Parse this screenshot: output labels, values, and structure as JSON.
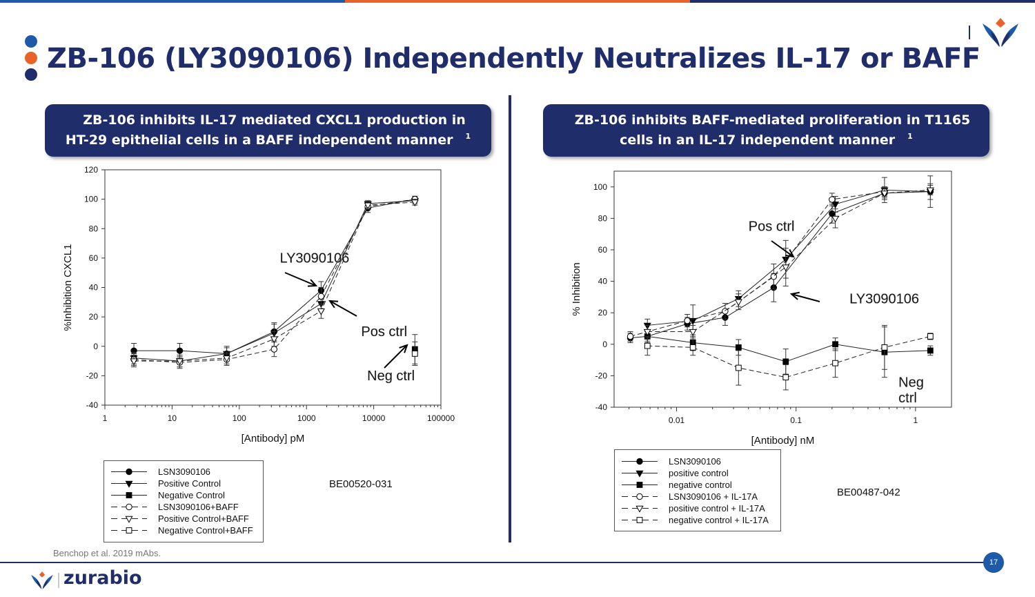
{
  "slide": {
    "title": "ZB-106 (LY3090106) Independently Neutralizes IL-17 or BAFF",
    "left_header": "ZB-106 inhibits IL-17 mediated CXCL1 production in HT-29 epithelial cells in a BAFF independent manner",
    "right_header": "ZB-106 inhibits BAFF-mediated proliferation in T1165 cells in an IL-17 independent manner",
    "footnote_mark": "1",
    "citation": "Benchop et al. 2019 mAbs.",
    "page_number": "17",
    "brand": "zurabio",
    "colors": {
      "navy": "#1f2d6b",
      "orange": "#e8622a",
      "blue": "#1f5aa8"
    }
  },
  "chart_data": [
    {
      "type": "line",
      "xscale": "log",
      "xlabel": "[Antibody] pM",
      "ylabel": "%Inhibition CXCL1",
      "xlim": [
        1,
        100000
      ],
      "ylim": [
        -40,
        120
      ],
      "xticks": [
        1,
        10,
        100,
        1000,
        10000,
        100000
      ],
      "xtick_labels": [
        "1",
        "10",
        "100",
        "1000",
        "10000",
        "100000"
      ],
      "yticks": [
        -40,
        -20,
        0,
        20,
        40,
        60,
        80,
        100,
        120
      ],
      "annotations": [
        {
          "text": "LY3090106",
          "x": 400,
          "y": 57
        },
        {
          "text": "Pos ctrl",
          "x": 6500,
          "y": 7
        },
        {
          "text": "Neg ctrl",
          "x": 8000,
          "y": -23
        }
      ],
      "code": "BE00520-031",
      "series": [
        {
          "name": "LSN3090106",
          "marker": "circle-filled",
          "dash": false,
          "x": [
            2.7,
            13,
            65,
            330,
            1650,
            8200,
            41000
          ],
          "y": [
            -3,
            -3,
            -5,
            10,
            38,
            94,
            100
          ],
          "err": [
            5,
            5,
            5,
            6,
            6,
            3,
            2
          ]
        },
        {
          "name": "Positive Control",
          "marker": "triangle-filled",
          "dash": false,
          "x": [
            2.7,
            13,
            65,
            330,
            1650,
            8200,
            41000
          ],
          "y": [
            -8,
            -10,
            -5,
            9,
            29,
            97,
            99
          ],
          "err": [
            4,
            4,
            4,
            6,
            5,
            2,
            2
          ]
        },
        {
          "name": "Negative Control",
          "marker": "square-filled",
          "dash": false,
          "x": [
            41000
          ],
          "y": [
            -2
          ],
          "err": [
            10
          ]
        },
        {
          "name": "LSN3090106+BAFF",
          "marker": "circle-open",
          "dash": true,
          "x": [
            2.7,
            13,
            65,
            330,
            1650,
            8200,
            41000
          ],
          "y": [
            -9,
            -11,
            -9,
            -2,
            34,
            95,
            100
          ],
          "err": [
            4,
            4,
            4,
            5,
            6,
            2,
            2
          ]
        },
        {
          "name": "Positive Control+BAFF",
          "marker": "triangle-open",
          "dash": true,
          "x": [
            2.7,
            13,
            65,
            330,
            1650,
            8200,
            41000
          ],
          "y": [
            -10,
            -10,
            -8,
            5,
            24,
            96,
            98
          ],
          "err": [
            4,
            4,
            4,
            5,
            5,
            2,
            2
          ]
        },
        {
          "name": "Negative Control+BAFF",
          "marker": "square-open",
          "dash": true,
          "x": [
            41000
          ],
          "y": [
            -5
          ],
          "err": [
            8
          ]
        }
      ]
    },
    {
      "type": "line",
      "xscale": "log",
      "xlabel": "[Antibody]  nM",
      "ylabel": "% Inhibition",
      "xlim": [
        0.003,
        2
      ],
      "ylim": [
        -40,
        110
      ],
      "xticks": [
        0.01,
        0.1,
        1
      ],
      "xtick_labels": [
        "0.01",
        "0.1",
        "1"
      ],
      "yticks": [
        -40,
        -20,
        0,
        20,
        40,
        60,
        80,
        100
      ],
      "annotations": [
        {
          "text": "Pos ctrl",
          "x": 0.04,
          "y": 72
        },
        {
          "text": "LY3090106",
          "x": 0.28,
          "y": 26
        },
        {
          "text": "Neg",
          "x": 0.72,
          "y": -27
        },
        {
          "text": "ctrl",
          "x": 0.72,
          "y": -37
        }
      ],
      "code": "BE00487-042",
      "series": [
        {
          "name": "LSN3090106",
          "marker": "circle-filled",
          "dash": false,
          "x": [
            0.0041,
            0.0057,
            0.0123,
            0.0255,
            0.065,
            0.2,
            0.55,
            1.33
          ],
          "y": [
            4,
            5,
            13,
            17,
            36,
            83,
            96,
            97
          ],
          "err": [
            3,
            4,
            4,
            5,
            9,
            6,
            4,
            5
          ]
        },
        {
          "name": "positive control",
          "marker": "triangle-filled",
          "dash": false,
          "x": [
            0.0057,
            0.0137,
            0.033,
            0.082,
            0.213,
            0.55,
            1.33
          ],
          "y": [
            12,
            15,
            29,
            54,
            89,
            98,
            97
          ],
          "err": [
            4,
            10,
            5,
            12,
            5,
            8,
            10
          ]
        },
        {
          "name": "negative control",
          "marker": "square-filled",
          "dash": false,
          "x": [
            0.0057,
            0.0137,
            0.033,
            0.082,
            0.213,
            0.55,
            1.33
          ],
          "y": [
            5,
            1,
            -2,
            -11,
            0,
            -5,
            -4
          ],
          "err": [
            3,
            5,
            5,
            8,
            4,
            16,
            3
          ]
        },
        {
          "name": "LSN3090106 + IL-17A",
          "marker": "circle-open",
          "dash": true,
          "x": [
            0.0041,
            0.0123,
            0.0255,
            0.065,
            0.2,
            0.55
          ],
          "y": [
            5,
            15,
            21,
            43,
            92,
            97
          ],
          "err": [
            3,
            4,
            5,
            8,
            4,
            3
          ]
        },
        {
          "name": "positive control + IL-17A",
          "marker": "triangle-open",
          "dash": true,
          "x": [
            0.0057,
            0.0137,
            0.033,
            0.082,
            0.213,
            0.55,
            1.33
          ],
          "y": [
            8,
            8,
            27,
            49,
            80,
            96,
            98
          ],
          "err": [
            4,
            4,
            5,
            12,
            6,
            3,
            3
          ]
        },
        {
          "name": "negative control + IL-17A",
          "marker": "square-open",
          "dash": true,
          "x": [
            0.0057,
            0.0137,
            0.033,
            0.082,
            0.213,
            0.55,
            1.33
          ],
          "y": [
            -1,
            -2,
            -15,
            -21,
            -12,
            -2,
            5
          ],
          "err": [
            6,
            5,
            11,
            8,
            9,
            14,
            2
          ]
        }
      ]
    }
  ]
}
